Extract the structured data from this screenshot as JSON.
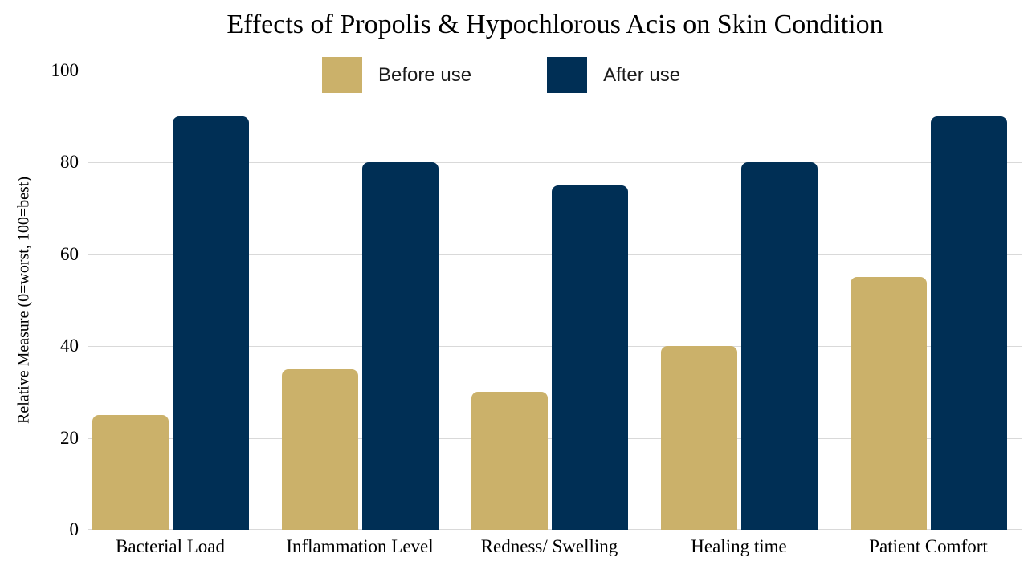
{
  "chart_data": {
    "type": "bar",
    "title": "Effects of Propolis & Hypochlorous Acis on Skin Condition",
    "xlabel": "",
    "ylabel": "Relative Measure (0=worst, 100=best)",
    "categories": [
      "Bacterial Load",
      "Inflammation Level",
      "Redness/ Swelling",
      "Healing time",
      "Patient Comfort"
    ],
    "series": [
      {
        "name": "Before use",
        "color": "#CBB16A",
        "values": [
          25,
          35,
          30,
          40,
          55
        ]
      },
      {
        "name": "After use",
        "color": "#002F55",
        "values": [
          90,
          80,
          75,
          80,
          90
        ]
      }
    ],
    "ylim": [
      0,
      100
    ],
    "yticks": [
      0,
      20,
      40,
      60,
      80,
      100
    ],
    "grid": "horizontal",
    "gridline_color": "#D9D9D9",
    "legend_position": "top-center",
    "background": "#FFFFFF",
    "text_color": "#000000"
  }
}
